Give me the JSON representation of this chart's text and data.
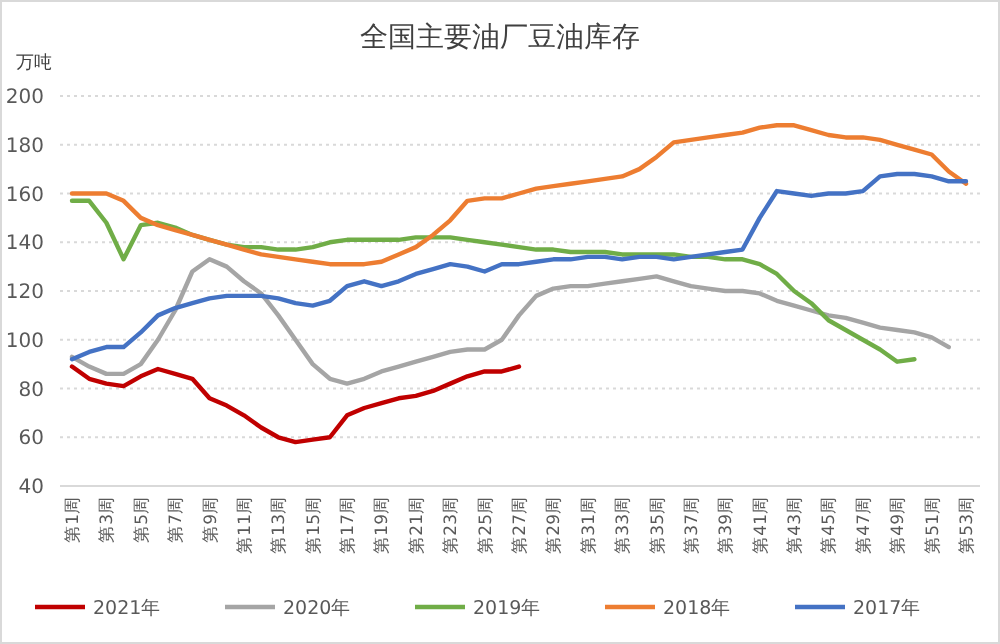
{
  "chart_data": {
    "type": "line",
    "title": "全国主要油厂豆油库存",
    "ylabel": "万吨",
    "categories": [
      "第1周",
      null,
      "第3周",
      null,
      "第5周",
      null,
      "第7周",
      null,
      "第9周",
      null,
      "第11周",
      null,
      "第13周",
      null,
      "第15周",
      null,
      "第17周",
      null,
      "第19周",
      null,
      "第21周",
      null,
      "第23周",
      null,
      "第25周",
      null,
      "第27周",
      null,
      "第29周",
      null,
      "第31周",
      null,
      "第33周",
      null,
      "第35周",
      null,
      "第37周",
      null,
      "第39周",
      null,
      "第41周",
      null,
      "第43周",
      null,
      "第45周",
      null,
      "第47周",
      null,
      "第49周",
      null,
      "第51周",
      null,
      "第53周"
    ],
    "ylim": [
      40,
      200
    ],
    "yticks": [
      40,
      60,
      80,
      100,
      120,
      140,
      160,
      180,
      200
    ],
    "grid": "y",
    "legend": "bottom",
    "marker": "none",
    "line_style": "solid",
    "series": [
      {
        "name": "2021年",
        "color": "#c00000",
        "values": [
          89,
          84,
          82,
          81,
          85,
          88,
          86,
          84,
          76,
          73,
          69,
          64,
          60,
          58,
          59,
          60,
          69,
          72,
          74,
          76,
          77,
          79,
          82,
          85,
          87,
          87,
          89,
          null,
          null,
          null,
          null,
          null,
          null,
          null,
          null,
          null,
          null,
          null,
          null,
          null,
          null,
          null,
          null,
          null,
          null,
          null,
          null,
          null,
          null,
          null,
          null,
          null,
          null
        ]
      },
      {
        "name": "2020年",
        "color": "#a5a5a5",
        "values": [
          93,
          89,
          86,
          86,
          90,
          100,
          112,
          128,
          133,
          130,
          124,
          119,
          110,
          100,
          90,
          84,
          82,
          84,
          87,
          89,
          91,
          93,
          95,
          96,
          96,
          100,
          110,
          118,
          121,
          122,
          122,
          123,
          124,
          125,
          126,
          124,
          122,
          121,
          120,
          120,
          119,
          116,
          114,
          112,
          110,
          109,
          107,
          105,
          104,
          103,
          101,
          97,
          null
        ]
      },
      {
        "name": "2019年",
        "color": "#70ad47",
        "values": [
          157,
          157,
          148,
          133,
          147,
          148,
          146,
          143,
          141,
          139,
          138,
          138,
          137,
          137,
          138,
          140,
          141,
          141,
          141,
          141,
          142,
          142,
          142,
          141,
          140,
          139,
          138,
          137,
          137,
          136,
          136,
          136,
          135,
          135,
          135,
          135,
          134,
          134,
          133,
          133,
          131,
          127,
          120,
          115,
          108,
          104,
          100,
          96,
          91,
          92,
          null,
          null,
          null
        ]
      },
      {
        "name": "2018年",
        "color": "#ed7d31",
        "values": [
          160,
          160,
          160,
          157,
          150,
          147,
          145,
          143,
          141,
          139,
          137,
          135,
          134,
          133,
          132,
          131,
          131,
          131,
          132,
          135,
          138,
          143,
          149,
          157,
          158,
          158,
          160,
          162,
          163,
          164,
          165,
          166,
          167,
          170,
          175,
          181,
          182,
          183,
          184,
          185,
          187,
          188,
          188,
          186,
          184,
          183,
          183,
          182,
          180,
          178,
          176,
          169,
          164
        ]
      },
      {
        "name": "2017年",
        "color": "#4472c4",
        "values": [
          92,
          95,
          97,
          97,
          103,
          110,
          113,
          115,
          117,
          118,
          118,
          118,
          117,
          115,
          114,
          116,
          122,
          124,
          122,
          124,
          127,
          129,
          131,
          130,
          128,
          131,
          131,
          132,
          133,
          133,
          134,
          134,
          133,
          134,
          134,
          133,
          134,
          135,
          136,
          137,
          150,
          161,
          160,
          159,
          160,
          160,
          161,
          167,
          168,
          168,
          167,
          165,
          165
        ]
      }
    ]
  }
}
